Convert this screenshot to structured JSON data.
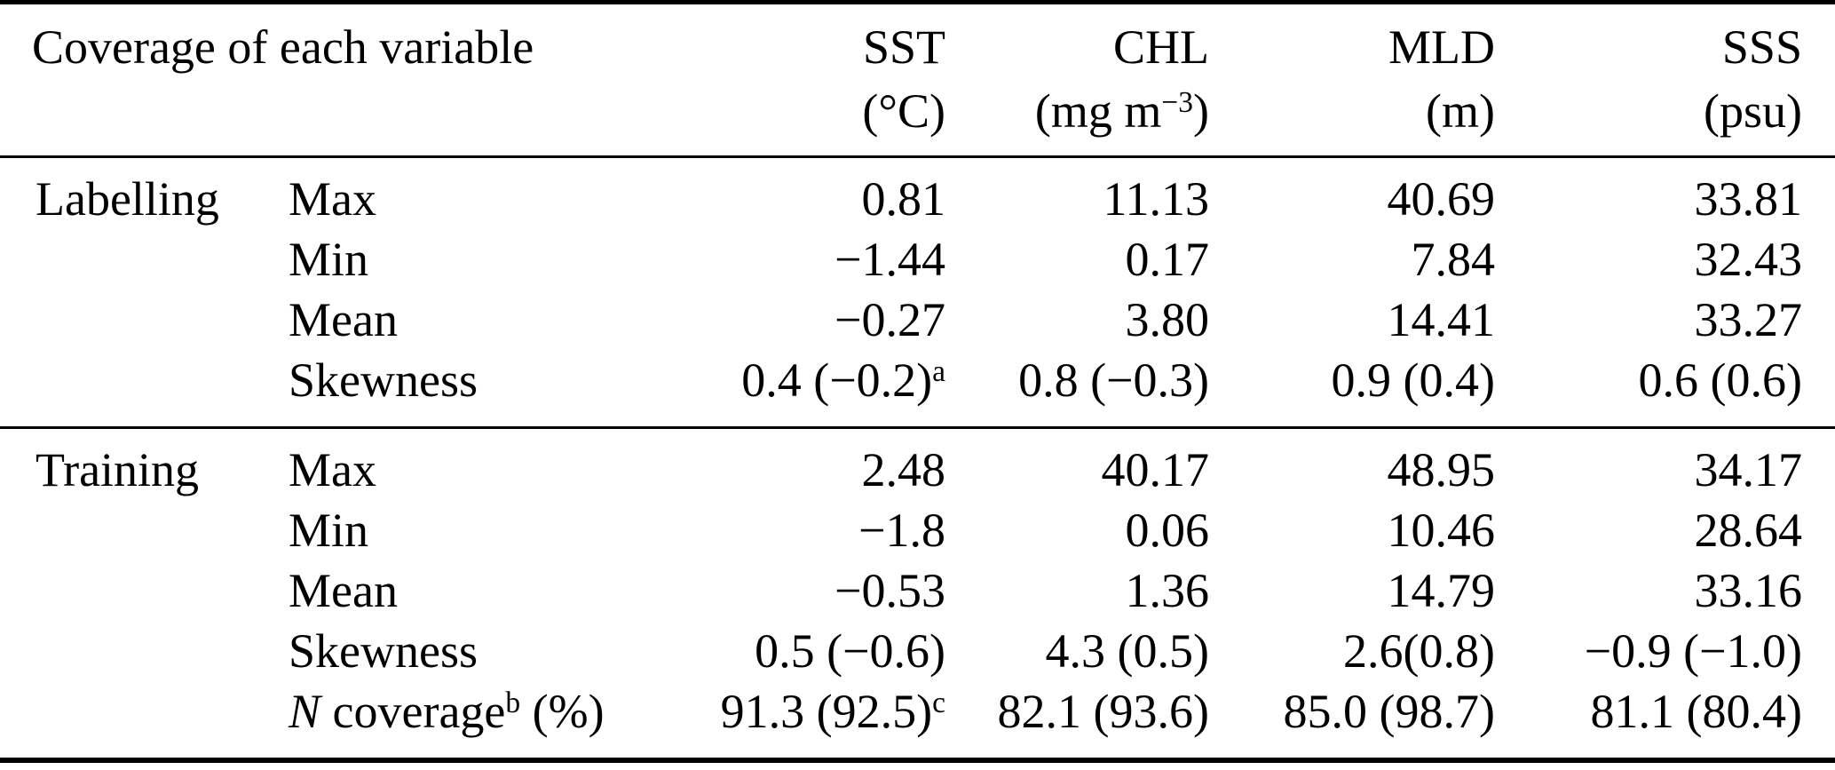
{
  "table": {
    "title": "Coverage of each variable",
    "header": {
      "columns": [
        {
          "name": "SST",
          "unit_pre": "(°C)",
          "unit_sup": "",
          "unit_post": ""
        },
        {
          "name": "CHL",
          "unit_pre": "(mg m",
          "unit_sup": "−3",
          "unit_post": ")"
        },
        {
          "name": "MLD",
          "unit_pre": "(m)",
          "unit_sup": "",
          "unit_post": ""
        },
        {
          "name": "SSS",
          "unit_pre": "(psu)",
          "unit_sup": "",
          "unit_post": ""
        }
      ]
    },
    "sections": [
      {
        "group": "Labelling",
        "rows": [
          {
            "label": "Max",
            "values": [
              {
                "text": "0.81"
              },
              {
                "text": "11.13"
              },
              {
                "text": "40.69"
              },
              {
                "text": "33.81"
              }
            ]
          },
          {
            "label": "Min",
            "values": [
              {
                "text": "−1.44"
              },
              {
                "text": "0.17"
              },
              {
                "text": "7.84"
              },
              {
                "text": "32.43"
              }
            ]
          },
          {
            "label": "Mean",
            "values": [
              {
                "text": "−0.27"
              },
              {
                "text": "3.80"
              },
              {
                "text": "14.41"
              },
              {
                "text": "33.27"
              }
            ]
          },
          {
            "label": "Skewness",
            "values": [
              {
                "text": "0.4 (−0.2)",
                "sup": "a"
              },
              {
                "text": "0.8 (−0.3)"
              },
              {
                "text": "0.9 (0.4)"
              },
              {
                "text": "0.6 (0.6)"
              }
            ]
          }
        ]
      },
      {
        "group": "Training",
        "rows": [
          {
            "label": "Max",
            "values": [
              {
                "text": "2.48"
              },
              {
                "text": "40.17"
              },
              {
                "text": "48.95"
              },
              {
                "text": "34.17"
              }
            ]
          },
          {
            "label": "Min",
            "values": [
              {
                "text": "−1.8"
              },
              {
                "text": "0.06"
              },
              {
                "text": "10.46"
              },
              {
                "text": "28.64"
              }
            ]
          },
          {
            "label": "Mean",
            "values": [
              {
                "text": "−0.53"
              },
              {
                "text": "1.36"
              },
              {
                "text": "14.79"
              },
              {
                "text": "33.16"
              }
            ]
          },
          {
            "label": "Skewness",
            "values": [
              {
                "text": "0.5 (−0.6)"
              },
              {
                "text": "4.3 (0.5)"
              },
              {
                "text": "2.6(0.8)"
              },
              {
                "text": "−0.9 (−1.0)"
              }
            ]
          },
          {
            "label_italic": "N",
            "label_pre": " coverage",
            "label_sup": "b",
            "label_post": " (%)",
            "values": [
              {
                "text": "91.3 (92.5)",
                "sup": "c"
              },
              {
                "text": "82.1 (93.6)"
              },
              {
                "text": "85.0 (98.7)"
              },
              {
                "text": "81.1 (80.4)"
              }
            ]
          }
        ]
      }
    ],
    "footnote_markers": [
      "a",
      "b",
      "c"
    ]
  }
}
